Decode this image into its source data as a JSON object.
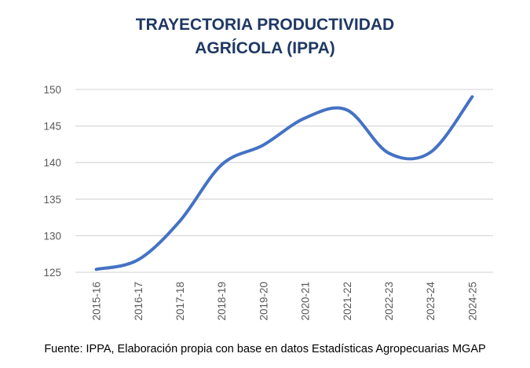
{
  "chart_data": {
    "type": "line",
    "title_lines": [
      "TRAYECTORIA PRODUCTIVIDAD",
      "AGRÍCOLA (IPPA)"
    ],
    "categories": [
      "2015-16",
      "2016-17",
      "2017-18",
      "2018-19",
      "2019-20",
      "2020-21",
      "2021-22",
      "2022-23",
      "2023-24",
      "2024-25"
    ],
    "series": [
      {
        "name": "IPPA",
        "values": [
          125.4,
          126.7,
          132.0,
          139.7,
          142.4,
          146.1,
          147.2,
          141.3,
          141.4,
          149.0
        ]
      }
    ],
    "ylim": [
      125,
      150
    ],
    "yticks": [
      125,
      130,
      135,
      140,
      145,
      150
    ],
    "xlabel": "",
    "ylabel": "",
    "grid": true,
    "line_color": "#4472c4"
  },
  "source": "Fuente: IPPA, Elaboración propia con base en datos Estadísticas Agropecuarias MGAP"
}
